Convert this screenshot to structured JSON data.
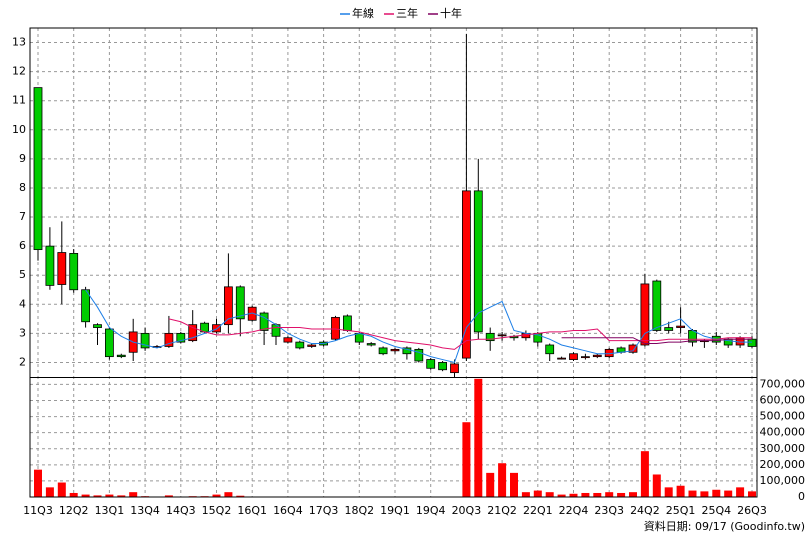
{
  "chart_data": {
    "type": "candlestick",
    "categories": [
      "11Q3",
      null,
      null,
      "12Q2",
      null,
      null,
      "13Q1",
      null,
      null,
      "13Q4",
      null,
      null,
      "14Q3",
      null,
      null,
      "15Q2",
      null,
      null,
      "16Q1",
      null,
      null,
      "16Q4",
      null,
      null,
      "17Q3",
      null,
      null,
      "18Q2",
      null,
      null,
      "19Q1",
      null,
      null,
      "19Q4",
      null,
      null,
      "20Q3",
      null,
      null,
      "21Q2",
      null,
      null,
      "22Q1",
      null,
      null,
      "22Q4",
      null,
      null,
      "23Q3",
      null,
      null,
      "24Q2",
      null,
      null,
      "25Q1",
      null,
      null,
      "25Q4",
      null,
      null,
      "26Q3"
    ],
    "open": [
      11.45,
      6.0,
      4.68,
      5.75,
      4.5,
      3.3,
      3.15,
      2.25,
      2.35,
      3.0,
      2.55,
      2.55,
      3.0,
      2.75,
      3.35,
      3.05,
      3.3,
      4.6,
      3.45,
      3.7,
      3.3,
      2.7,
      2.7,
      2.55,
      2.7,
      2.8,
      3.6,
      3.0,
      2.65,
      2.5,
      2.4,
      2.5,
      2.45,
      2.1,
      2.0,
      1.65,
      2.15,
      7.9,
      3.0,
      2.95,
      2.9,
      2.85,
      3.0,
      2.6,
      2.15,
      2.1,
      2.2,
      2.2,
      2.2,
      2.5,
      2.35,
      2.6,
      4.8,
      3.2,
      3.2,
      3.1,
      2.75,
      2.9,
      2.8,
      2.6,
      2.8
    ],
    "high": [
      11.45,
      6.65,
      6.85,
      5.9,
      4.6,
      3.35,
      3.2,
      2.3,
      3.5,
      3.2,
      2.6,
      3.6,
      3.05,
      3.8,
      3.4,
      3.5,
      5.75,
      4.65,
      3.95,
      3.75,
      3.35,
      2.9,
      2.75,
      2.65,
      2.75,
      3.6,
      3.65,
      3.05,
      2.7,
      2.55,
      2.5,
      2.55,
      2.5,
      2.15,
      2.05,
      2.1,
      13.3,
      9.0,
      3.2,
      3.05,
      2.95,
      3.1,
      3.05,
      2.65,
      2.2,
      2.35,
      2.3,
      2.3,
      2.5,
      2.55,
      2.65,
      5.05,
      4.85,
      3.4,
      3.9,
      3.15,
      2.8,
      3.05,
      2.85,
      2.9,
      2.9
    ],
    "low": [
      5.5,
      4.5,
      4.0,
      4.4,
      3.2,
      2.6,
      2.1,
      2.15,
      2.05,
      2.4,
      2.5,
      2.5,
      2.65,
      2.7,
      3.0,
      3.0,
      3.0,
      2.9,
      3.4,
      2.6,
      2.6,
      2.65,
      2.45,
      2.5,
      2.55,
      2.75,
      3.05,
      2.6,
      2.55,
      2.25,
      2.3,
      2.1,
      2.0,
      1.75,
      1.7,
      1.5,
      2.05,
      2.8,
      2.4,
      2.75,
      2.75,
      2.75,
      2.55,
      2.05,
      2.1,
      2.05,
      2.1,
      2.15,
      2.15,
      2.3,
      2.3,
      2.55,
      3.05,
      3.0,
      3.0,
      2.55,
      2.5,
      2.6,
      2.5,
      2.5,
      2.5
    ],
    "close": [
      5.88,
      4.65,
      5.78,
      4.5,
      3.4,
      3.2,
      2.2,
      2.2,
      3.05,
      2.5,
      2.55,
      3.0,
      2.7,
      3.3,
      3.05,
      3.3,
      4.6,
      3.5,
      3.9,
      3.1,
      2.9,
      2.85,
      2.5,
      2.6,
      2.6,
      3.55,
      3.1,
      2.7,
      2.6,
      2.3,
      2.45,
      2.3,
      2.05,
      1.8,
      1.75,
      1.95,
      7.9,
      3.05,
      2.75,
      2.95,
      2.85,
      3.0,
      2.7,
      2.3,
      2.15,
      2.3,
      2.2,
      2.25,
      2.45,
      2.35,
      2.6,
      4.7,
      3.1,
      3.1,
      3.25,
      2.7,
      2.75,
      2.7,
      2.6,
      2.85,
      2.55
    ],
    "volume": [
      170000,
      60000,
      90000,
      25000,
      15000,
      10000,
      15000,
      10000,
      30000,
      5000,
      3000,
      10000,
      3000,
      5000,
      5000,
      15000,
      30000,
      8000,
      3000,
      3000,
      3000,
      3000,
      3000,
      3000,
      3000,
      3000,
      3000,
      3000,
      3000,
      3000,
      3000,
      3000,
      3000,
      3000,
      3000,
      3000,
      465000,
      735000,
      150000,
      210000,
      150000,
      30000,
      40000,
      30000,
      15000,
      20000,
      25000,
      25000,
      30000,
      25000,
      30000,
      285000,
      140000,
      60000,
      70000,
      40000,
      35000,
      45000,
      40000,
      60000,
      35000
    ],
    "up_color": "#ff0000",
    "down_color": "#00cc00",
    "volume_color": "#ff0000",
    "series": [
      {
        "name": "年線",
        "color": "#1e7fe6",
        "values": [
          null,
          null,
          null,
          null,
          4.5,
          3.9,
          3.2,
          2.9,
          2.7,
          2.6,
          2.5,
          2.65,
          2.75,
          2.85,
          3.0,
          3.15,
          3.5,
          3.6,
          3.7,
          3.55,
          3.3,
          3.0,
          2.8,
          2.65,
          2.65,
          2.75,
          2.9,
          3.0,
          2.9,
          2.7,
          2.55,
          2.45,
          2.35,
          2.2,
          2.1,
          2.0,
          3.2,
          3.7,
          3.9,
          4.1,
          3.1,
          3.0,
          2.95,
          2.8,
          2.6,
          2.5,
          2.4,
          2.3,
          2.3,
          2.35,
          2.4,
          3.0,
          3.2,
          3.35,
          3.5,
          3.1,
          2.9,
          2.8,
          2.75,
          2.7,
          2.7
        ]
      },
      {
        "name": "三年",
        "color": "#e0106a",
        "values": [
          null,
          null,
          null,
          null,
          null,
          null,
          null,
          null,
          null,
          null,
          null,
          3.5,
          3.4,
          3.2,
          3.05,
          2.95,
          2.95,
          3.0,
          3.05,
          3.15,
          3.2,
          3.2,
          3.2,
          3.15,
          3.15,
          3.15,
          3.1,
          3.05,
          2.95,
          2.85,
          2.75,
          2.7,
          2.65,
          2.6,
          2.5,
          2.45,
          2.75,
          2.8,
          2.8,
          2.85,
          2.9,
          2.95,
          3.0,
          3.05,
          3.05,
          3.1,
          3.1,
          3.15,
          2.75,
          2.75,
          2.75,
          2.75,
          2.75,
          2.8,
          2.8,
          2.8,
          2.8,
          2.8,
          2.85,
          2.85,
          2.85
        ]
      },
      {
        "name": "十年",
        "color": "#800060",
        "values": [
          null,
          null,
          null,
          null,
          null,
          null,
          null,
          null,
          null,
          null,
          null,
          null,
          null,
          null,
          null,
          null,
          null,
          null,
          null,
          null,
          null,
          null,
          null,
          null,
          null,
          null,
          null,
          null,
          null,
          null,
          null,
          null,
          null,
          null,
          null,
          null,
          null,
          null,
          null,
          null,
          null,
          null,
          null,
          null,
          2.85,
          2.85,
          2.85,
          2.85,
          2.85,
          2.85,
          2.85,
          2.65,
          2.65,
          2.7,
          2.7,
          2.75,
          2.75,
          2.75,
          2.8,
          2.8,
          2.8
        ]
      }
    ],
    "ylim": [
      1.5,
      13.5
    ],
    "yticks": [
      2,
      3,
      4,
      5,
      6,
      7,
      8,
      9,
      10,
      11,
      12,
      13
    ],
    "y2lim": [
      0,
      740000
    ],
    "y2ticks": [
      {
        "value": 0,
        "label": "0"
      },
      {
        "value": 100000,
        "label": "100,000"
      },
      {
        "value": 200000,
        "label": "200,000"
      },
      {
        "value": 300000,
        "label": "300,000"
      },
      {
        "value": 400000,
        "label": "400,000"
      },
      {
        "value": 500000,
        "label": "500,000"
      },
      {
        "value": 600000,
        "label": "600,000"
      },
      {
        "value": 700000,
        "label": "700,000"
      }
    ],
    "grid": true,
    "legend": "top",
    "footer": "資料日期: 09/17  (Goodinfo.tw)"
  }
}
